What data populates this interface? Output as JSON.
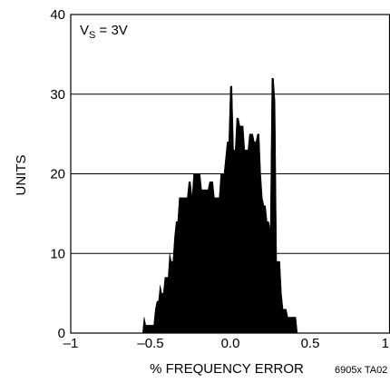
{
  "chart_data": {
    "type": "area",
    "xlabel": "% FREQUENCY ERROR",
    "ylabel": "UNITS",
    "xlim": [
      -1,
      1
    ],
    "ylim": [
      0,
      40
    ],
    "grid": true,
    "x_ticks": [
      -1,
      -0.5,
      0,
      0.5,
      1
    ],
    "x_tick_labels": [
      "–1",
      "–0.5",
      "0.0",
      "0.5",
      "1"
    ],
    "y_ticks": [
      0,
      10,
      20,
      30,
      40
    ],
    "y_tick_labels": [
      "0",
      "10",
      "20",
      "30",
      "40"
    ],
    "annotation": {
      "main": "V",
      "sub": "S",
      "rest": " = 3V"
    },
    "footnote": "6905x TA02",
    "fill_color": "#000000",
    "series": [
      {
        "x": [
          -0.55,
          -0.54,
          -0.53,
          -0.52,
          -0.51,
          -0.5,
          -0.49,
          -0.48,
          -0.47,
          -0.46,
          -0.45,
          -0.44,
          -0.43,
          -0.42,
          -0.41,
          -0.4,
          -0.39,
          -0.38,
          -0.37,
          -0.36,
          -0.35,
          -0.34,
          -0.33,
          -0.32,
          -0.31,
          -0.3,
          -0.29,
          -0.28,
          -0.27,
          -0.26,
          -0.25,
          -0.24,
          -0.23,
          -0.22,
          -0.21,
          -0.2,
          -0.19,
          -0.18,
          -0.17,
          -0.16,
          -0.15,
          -0.14,
          -0.13,
          -0.12,
          -0.11,
          -0.1,
          -0.09,
          -0.08,
          -0.07,
          -0.06,
          -0.05,
          -0.04,
          -0.03,
          -0.02,
          -0.01,
          0.0,
          0.01,
          0.02,
          0.03,
          0.04,
          0.05,
          0.06,
          0.07,
          0.08,
          0.09,
          0.1,
          0.11,
          0.12,
          0.13,
          0.14,
          0.15,
          0.16,
          0.17,
          0.18,
          0.19,
          0.2,
          0.21,
          0.22,
          0.23,
          0.24,
          0.25,
          0.26,
          0.27,
          0.28,
          0.29,
          0.3,
          0.31,
          0.32,
          0.33,
          0.34,
          0.35,
          0.36,
          0.37,
          0.38,
          0.39,
          0.4,
          0.41,
          0.42,
          0.43,
          0.44,
          0.45,
          0.46,
          0.47,
          0.48,
          0.49,
          0.5,
          0.51,
          0.52
        ],
        "values": [
          0,
          2,
          1,
          1,
          1,
          1,
          1,
          1,
          3,
          4,
          4,
          6,
          5,
          5,
          7,
          7,
          7,
          10,
          9,
          9,
          12,
          14,
          14,
          17,
          17,
          17,
          17,
          17,
          17,
          19,
          19,
          17,
          20,
          20,
          20,
          20,
          20,
          18,
          18,
          18,
          18,
          18,
          19,
          19,
          19,
          17,
          17,
          17,
          17,
          20,
          20,
          20,
          22,
          24,
          24,
          31,
          31,
          23,
          23,
          27,
          27,
          26,
          26,
          26,
          23,
          23,
          23,
          25,
          25,
          25,
          24,
          24,
          25,
          25,
          20,
          17,
          16,
          16,
          14,
          14,
          13,
          32,
          32,
          29,
          9,
          9,
          9,
          5,
          3,
          3,
          3,
          2,
          2,
          2,
          2,
          2,
          2,
          0,
          0,
          0,
          0,
          0,
          0,
          0,
          0,
          0,
          0,
          0
        ]
      }
    ]
  }
}
